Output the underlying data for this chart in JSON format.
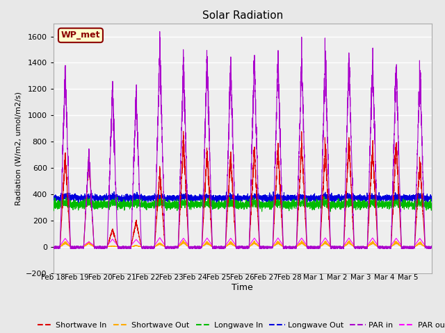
{
  "title": "Solar Radiation",
  "xlabel": "Time",
  "ylabel": "Radiation (W/m2, umol/m2/s)",
  "ylim": [
    -200,
    1700
  ],
  "yticks": [
    -200,
    0,
    200,
    400,
    600,
    800,
    1000,
    1200,
    1400,
    1600
  ],
  "date_labels": [
    "Feb 18",
    "Feb 19",
    "Feb 20",
    "Feb 21",
    "Feb 22",
    "Feb 23",
    "Feb 24",
    "Feb 25",
    "Feb 26",
    "Feb 27",
    "Feb 28",
    "Mar 1",
    "Mar 2",
    "Mar 3",
    "Mar 4",
    "Mar 5"
  ],
  "legend_label": "WP_met",
  "series": {
    "shortwave_in": {
      "color": "#dd0000",
      "label": "Shortwave In"
    },
    "shortwave_out": {
      "color": "#ffaa00",
      "label": "Shortwave Out"
    },
    "longwave_in": {
      "color": "#00bb00",
      "label": "Longwave In"
    },
    "longwave_out": {
      "color": "#0000dd",
      "label": "Longwave Out"
    },
    "par_in": {
      "color": "#aa00cc",
      "label": "PAR in"
    },
    "par_out": {
      "color": "#ff00ff",
      "label": "PAR out"
    }
  },
  "background_color": "#e8e8e8",
  "plot_bg_color": "#eeeeee",
  "grid_color": "#ffffff",
  "day_peaks_sw": [
    700,
    680,
    130,
    190,
    560,
    820,
    720,
    700,
    740,
    760,
    780,
    760,
    800,
    770,
    790,
    650
  ],
  "day_peaks_par": [
    1350,
    700,
    1200,
    1150,
    1500,
    1400,
    1430,
    1400,
    1420,
    1440,
    1420,
    1450,
    1420,
    1440,
    1380,
    1350
  ],
  "lw_in_mean": 320,
  "lw_out_mean": 370
}
